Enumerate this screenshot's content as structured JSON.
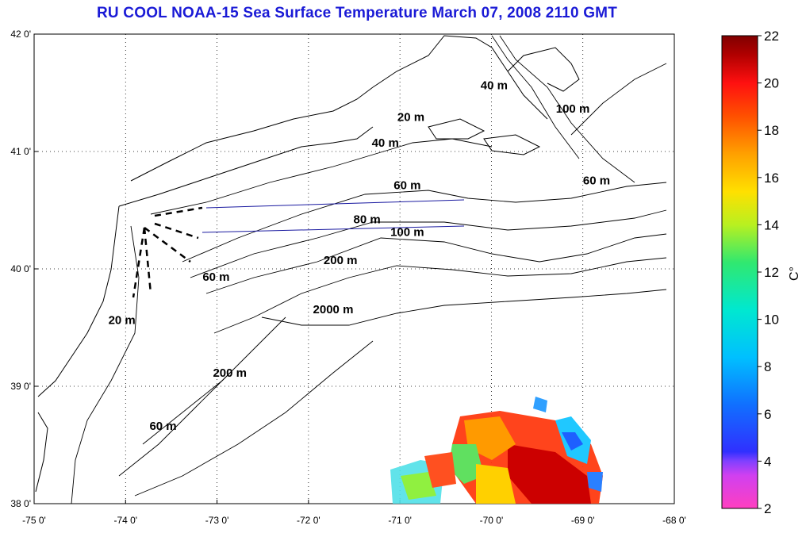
{
  "title": "RU COOL  NOAA-15 Sea Surface Temperature March 07, 2008 2110 GMT",
  "map": {
    "lon_range": [
      -75,
      -68
    ],
    "lat_range": [
      38,
      42
    ],
    "lon_ticks": [
      "-75 0'",
      "-74 0'",
      "-73 0'",
      "-72 0'",
      "-71 0'",
      "-70 0'",
      "-69 0'",
      "-68 0'"
    ],
    "lat_ticks": [
      "42 0'",
      "41 0'",
      "40 0'",
      "39 0'",
      "38 0'"
    ],
    "grid": true,
    "isobath_labels": [
      {
        "text": "20 m",
        "lon": -70.88,
        "lat": 41.26
      },
      {
        "text": "40 m",
        "lon": -69.97,
        "lat": 41.53
      },
      {
        "text": "100 m",
        "lon": -69.11,
        "lat": 41.33
      },
      {
        "text": "40 m",
        "lon": -71.16,
        "lat": 41.04
      },
      {
        "text": "60 m",
        "lon": -70.92,
        "lat": 40.68
      },
      {
        "text": "60 m",
        "lon": -68.85,
        "lat": 40.72
      },
      {
        "text": "80 m",
        "lon": -71.36,
        "lat": 40.39
      },
      {
        "text": "100 m",
        "lon": -70.92,
        "lat": 40.28
      },
      {
        "text": "200 m",
        "lon": -71.65,
        "lat": 40.04
      },
      {
        "text": "60 m",
        "lon": -73.01,
        "lat": 39.9
      },
      {
        "text": "2000 m",
        "lon": -71.73,
        "lat": 39.62
      },
      {
        "text": "20 m",
        "lon": -74.04,
        "lat": 39.53
      },
      {
        "text": "200 m",
        "lon": -72.86,
        "lat": 39.08
      },
      {
        "text": "60 m",
        "lon": -73.59,
        "lat": 38.63
      }
    ]
  },
  "colorbar": {
    "ticks": [
      "22",
      "20",
      "18",
      "16",
      "14",
      "12",
      "10",
      "8",
      "6",
      "4",
      "2"
    ],
    "min": 2,
    "max": 22,
    "unit_label": "C°",
    "colors": [
      "#ff3fc0",
      "#b040ff",
      "#3030ff",
      "#1070ff",
      "#00c0ff",
      "#00e8d0",
      "#30e870",
      "#b8f020",
      "#ffe000",
      "#ffa000",
      "#ff5000",
      "#ff1010",
      "#b00000",
      "#800000"
    ]
  },
  "colors": {
    "title": "#1a1ad6",
    "transect": "#1a1aa0",
    "land_edge": "#000000"
  }
}
